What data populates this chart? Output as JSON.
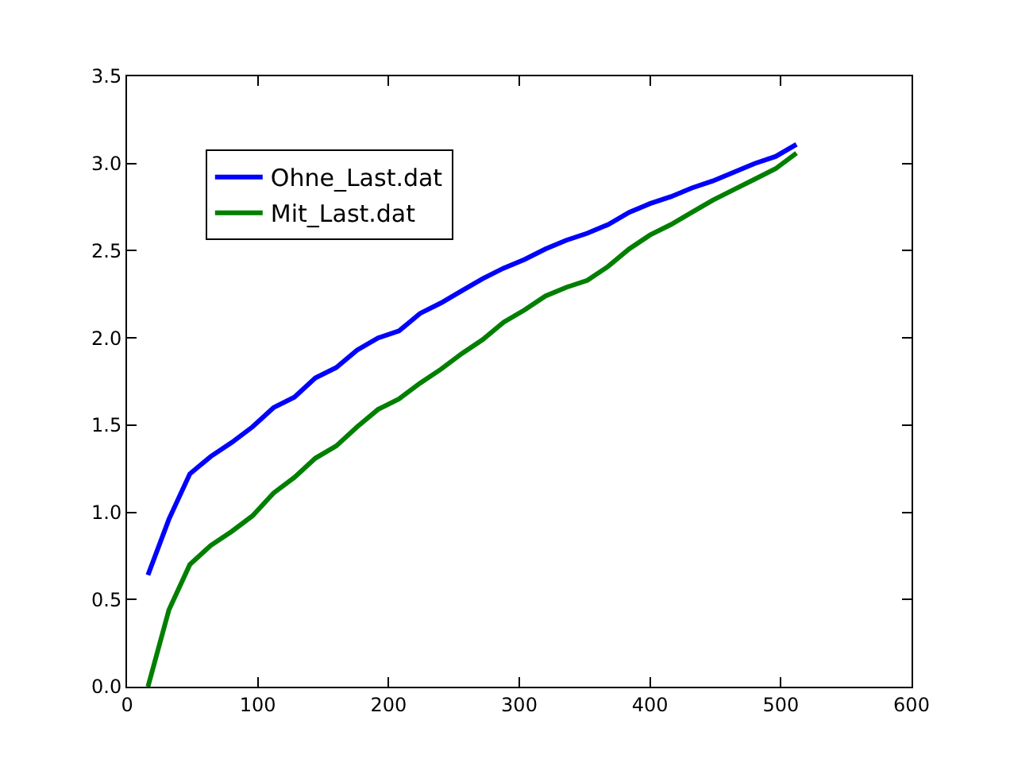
{
  "chart_data": {
    "type": "line",
    "x": [
      16,
      32,
      48,
      64,
      80,
      96,
      112,
      128,
      144,
      160,
      176,
      192,
      208,
      224,
      240,
      256,
      272,
      288,
      304,
      320,
      336,
      352,
      368,
      384,
      400,
      416,
      432,
      448,
      464,
      480,
      496,
      512
    ],
    "series": [
      {
        "name": "Ohne_Last.dat",
        "color": "#0000ff",
        "values": [
          0.64,
          0.96,
          1.22,
          1.32,
          1.4,
          1.49,
          1.6,
          1.66,
          1.77,
          1.83,
          1.93,
          2.0,
          2.04,
          2.14,
          2.2,
          2.27,
          2.34,
          2.4,
          2.45,
          2.51,
          2.56,
          2.6,
          2.65,
          2.72,
          2.77,
          2.81,
          2.86,
          2.9,
          2.95,
          3.0,
          3.04,
          3.11
        ]
      },
      {
        "name": "Mit_Last.dat",
        "color": "#007f00",
        "values": [
          0.0,
          0.44,
          0.7,
          0.81,
          0.89,
          0.98,
          1.11,
          1.2,
          1.31,
          1.38,
          1.49,
          1.59,
          1.65,
          1.74,
          1.82,
          1.91,
          1.99,
          2.09,
          2.16,
          2.24,
          2.29,
          2.33,
          2.41,
          2.51,
          2.59,
          2.65,
          2.72,
          2.79,
          2.85,
          2.91,
          2.97,
          3.06
        ]
      }
    ],
    "xlim": [
      0,
      600
    ],
    "xticks": [
      0,
      100,
      200,
      300,
      400,
      500,
      600
    ],
    "ylim": [
      0,
      3.5
    ],
    "yticks": [
      {
        "value": 0,
        "label": "0.0"
      },
      {
        "value": 0.5,
        "label": "0.5"
      },
      {
        "value": 1,
        "label": "1.0"
      },
      {
        "value": 1.5,
        "label": "1.5"
      },
      {
        "value": 2,
        "label": "2.0"
      },
      {
        "value": 2.5,
        "label": "2.5"
      },
      {
        "value": 3,
        "label": "3.0"
      },
      {
        "value": 3.5,
        "label": "3.5"
      }
    ],
    "legend": "top left",
    "marker": "none",
    "line_style": "solid"
  }
}
